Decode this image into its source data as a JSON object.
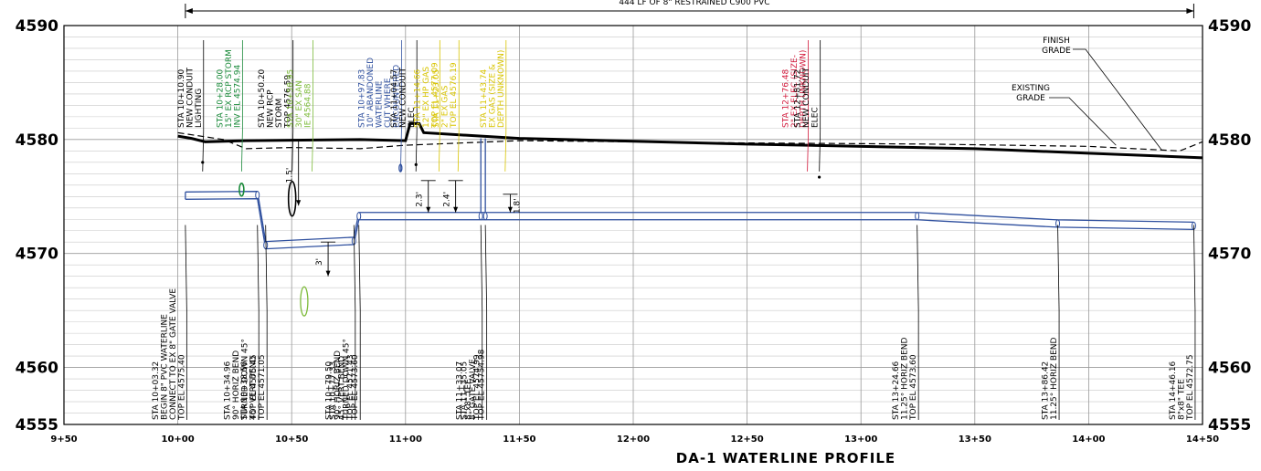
{
  "title": "DA-1 WATERLINE PROFILE",
  "top_dimension": "444 LF OF 8\" RESTRAINED C900 PVC",
  "elevations": [
    {
      "label": "4590",
      "value": 4590
    },
    {
      "label": "4580",
      "value": 4580
    },
    {
      "label": "4570",
      "value": 4570
    },
    {
      "label": "4560",
      "value": 4560
    },
    {
      "label": "4555",
      "value": 4555
    }
  ],
  "stations": [
    {
      "label": "9+50",
      "value": 950
    },
    {
      "label": "10+00",
      "value": 1000
    },
    {
      "label": "10+50",
      "value": 1050
    },
    {
      "label": "11+00",
      "value": 1100
    },
    {
      "label": "11+50",
      "value": 1150
    },
    {
      "label": "12+00",
      "value": 1200
    },
    {
      "label": "12+50",
      "value": 1250
    },
    {
      "label": "13+00",
      "value": 1300
    },
    {
      "label": "13+50",
      "value": 1350
    },
    {
      "label": "14+00",
      "value": 1400
    },
    {
      "label": "14+50",
      "value": 1450
    }
  ],
  "grade_labels": {
    "finish": [
      "FINISH",
      "GRADE"
    ],
    "existing": [
      "EXISTING",
      "GRADE"
    ]
  },
  "clearances": [
    "1.5'",
    "3'",
    "2.3'",
    "2.4'",
    "1.8'"
  ],
  "colors": {
    "pipe": "#2e4f9e",
    "storm": "#1a8a3a",
    "sanitary": "#7dbb3a",
    "gas": "#d8c400",
    "electric": "#d21a3c",
    "linework": "#000000",
    "grid": "#c8c8c8"
  },
  "upper_callouts": [
    {
      "station": 1010.9,
      "color": "black",
      "lines": [
        "STA 10+10.90",
        "NEW CONDUIT",
        "LIGHTING"
      ]
    },
    {
      "station": 1028.0,
      "color": "green",
      "lines": [
        "STA 10+28.00",
        "15\" EX RCP STORM",
        "INV EL 4574.94"
      ]
    },
    {
      "station": 1050.2,
      "color": "black",
      "lines": [
        "STA 10+50.20",
        "NEW RCP",
        "STORM",
        "TOP 4576.59"
      ]
    },
    {
      "station": 1058.95,
      "color": "sanitary",
      "lines": [
        "STA 10+58.95",
        "30\" EX SAN",
        "IE 4564.88"
      ]
    },
    {
      "station": 1097.83,
      "color": "blue",
      "lines": [
        "STA 10+97.83",
        "10\" ABANDONED",
        "WATERLINE",
        "CUT WHERE",
        "ENCOUNTERED"
      ]
    },
    {
      "station": 1104.57,
      "color": "black",
      "lines": [
        "STA 11+04.57",
        "NEW CONDUIT",
        "ELEC"
      ]
    },
    {
      "station": 1114.66,
      "color": "gas",
      "lines": [
        "STA 11+14.66",
        "12\" EX HP GAS",
        "TOP EL 4577.09"
      ]
    },
    {
      "station": 1123.05,
      "color": "gas",
      "lines": [
        "STA 11+23.05",
        "2\" EX GAS",
        "TOP EL 4576.19"
      ]
    },
    {
      "station": 1143.74,
      "color": "gas",
      "lines": [
        "STA 11+43.74",
        "EX GAS (SIZE &",
        "DEPTH UNKNOWN)"
      ]
    },
    {
      "station": 1276.48,
      "color": "electric",
      "lines": [
        "STA 12+76.48",
        "2\" EX ELEC (SIZE-",
        "DEPTH UNKNOWN)"
      ]
    },
    {
      "station": 1281.72,
      "color": "black",
      "lines": [
        "STA 12+81.72",
        "NEW CONDUIT",
        "ELEC"
      ]
    }
  ],
  "lower_callouts": [
    {
      "station": 1003.32,
      "lines": [
        "STA 10+03.32",
        "BEGIN 8\" PVC WATERLINE",
        "CONNECT TO EX 8\" GATE VALVE",
        "TOP EL 4575.40"
      ]
    },
    {
      "station": 1034.96,
      "lines": [
        "STA 10+34.96",
        "90° HORIZ BEND",
        "TURNED DOWN 45°",
        "TOP EL 4575.45"
      ]
    },
    {
      "station": 1038.56,
      "lines": [
        "STA 10+38.56",
        "45° VERT BEND",
        "TOP EL 4571.05"
      ]
    },
    {
      "station": 1077.33,
      "lines": [
        "STA 10+77.33",
        "45° VERT BEND",
        "TOP EL 4571.43"
      ]
    },
    {
      "station": 1079.5,
      "lines": [
        "STA 10+79.50",
        "90° HORIZ BEND",
        "TURNED DOWN 45°",
        "TOP EL 4573.60"
      ]
    },
    {
      "station": 1133.07,
      "lines": [
        "STA 11+33.07",
        "8\"x8\" TEE",
        "TOP EL 4574.99"
      ]
    },
    {
      "station": 1135.05,
      "lines": [
        "STA 11+35.05",
        "8\" GATE VALVE",
        "TOP EL 45754.98"
      ]
    },
    {
      "station": 1324.66,
      "lines": [
        "STA 13+24.66",
        "11.25° HORIZ BEND",
        "TOP EL 4573.60"
      ]
    },
    {
      "station": 1386.42,
      "lines": [
        "STA 13+86.42",
        "11.25° HORIZ BEND"
      ]
    },
    {
      "station": 1446.16,
      "lines": [
        "STA 14+46.16",
        "8\"x8\" TEE",
        "TOP EL 4572.75"
      ]
    }
  ]
}
